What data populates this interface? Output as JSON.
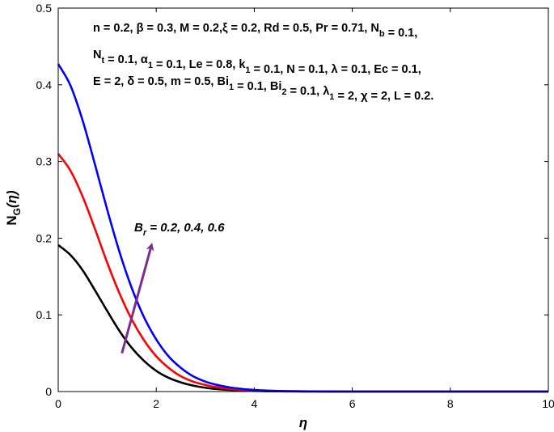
{
  "chart_data": {
    "type": "line",
    "xlabel": "η",
    "ylabel_main": "N",
    "ylabel_sub": "G",
    "ylabel_tail": "(η)",
    "xlim": [
      0,
      10
    ],
    "ylim": [
      0,
      0.5
    ],
    "xticks": [
      "0",
      "2",
      "4",
      "6",
      "8",
      "10"
    ],
    "yticks": [
      "0",
      "0.1",
      "0.2",
      "0.3",
      "0.4",
      "0.5"
    ],
    "grid": false,
    "x": [
      0,
      0.25,
      0.5,
      0.75,
      1,
      1.25,
      1.5,
      1.75,
      2,
      2.25,
      2.5,
      2.75,
      3,
      3.25,
      3.5,
      3.75,
      4,
      4.25,
      4.5,
      4.75,
      5,
      5.5,
      6,
      7,
      8,
      9,
      10
    ],
    "series": [
      {
        "name": "0.2",
        "color": "#000000",
        "values": [
          0.191,
          0.178,
          0.158,
          0.132,
          0.105,
          0.079,
          0.057,
          0.04,
          0.027,
          0.018,
          0.012,
          0.0078,
          0.005,
          0.0032,
          0.0021,
          0.0013,
          0.0008,
          0.0005,
          0.0003,
          0.0002,
          0.0001,
          0,
          0,
          0,
          0,
          0,
          0
        ]
      },
      {
        "name": "0.4",
        "color": "#ff0000",
        "values": [
          0.31,
          0.288,
          0.254,
          0.212,
          0.168,
          0.128,
          0.094,
          0.067,
          0.046,
          0.031,
          0.02,
          0.013,
          0.0086,
          0.0055,
          0.0035,
          0.0022,
          0.0014,
          0.0009,
          0.0005,
          0.0003,
          0.0002,
          0.0001,
          0,
          0,
          0,
          0,
          0
        ]
      },
      {
        "name": "0.6",
        "color": "#0000ff",
        "values": [
          0.427,
          0.399,
          0.353,
          0.296,
          0.237,
          0.182,
          0.135,
          0.097,
          0.068,
          0.046,
          0.031,
          0.02,
          0.013,
          0.0085,
          0.0054,
          0.0034,
          0.0021,
          0.0013,
          0.0008,
          0.0005,
          0.0003,
          0.0001,
          0,
          0,
          0,
          0,
          0
        ]
      }
    ],
    "parameters": [
      "n = 0.2, β = 0.3, M = 0.2,ξ = 0.2, Rd = 0.5, Pr = 0.71, N_b = 0.1,",
      "N_t = 0.1, α_1 = 0.1, Le = 0.8, k_1 = 0.1, N = 0.1, λ = 0.1, Ec = 0.1,",
      "E = 2, δ = 0.5, m = 0.5, Bi_1 = 0.1, Bi_2 = 0.1, λ_1 = 2, χ = 2, L = 0.2."
    ],
    "annotation": {
      "label_main": "B",
      "label_sub": "r",
      "label_tail": " = 0.2, 0.4, 0.6",
      "arrow_from": [
        1.3,
        0.05
      ],
      "arrow_to": [
        1.9,
        0.19
      ],
      "arrow_color": "#7b2d8e"
    }
  }
}
